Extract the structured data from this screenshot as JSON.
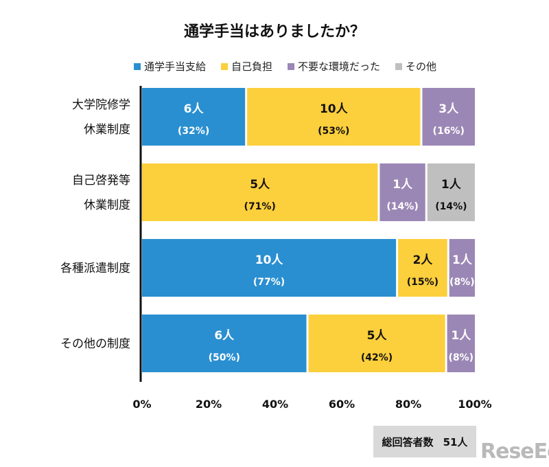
{
  "chart_data": {
    "type": "bar",
    "orientation": "horizontal",
    "stacked": "percent",
    "title": "通学手当はありましたか？",
    "categories": [
      [
        "大学院修学",
        "休業制度"
      ],
      [
        "自己啓発等",
        "休業制度"
      ],
      [
        "各種派遣制度"
      ],
      [
        "その他の制度"
      ]
    ],
    "series": [
      {
        "name": "通学手当支給",
        "color": "#2a8fd0",
        "label_color": "#ffffff",
        "values": [
          6,
          0,
          10,
          6
        ],
        "percent_labels": [
          "(32%)",
          null,
          "(77%)",
          "(50%)"
        ]
      },
      {
        "name": "自己負担",
        "color": "#fccf3c",
        "label_color": "#111111",
        "values": [
          10,
          5,
          2,
          5
        ],
        "percent_labels": [
          "(53%)",
          "(71%)",
          "(15%)",
          "(42%)"
        ]
      },
      {
        "name": "不要な環境だった",
        "color": "#9b87b5",
        "label_color": "#ffffff",
        "values": [
          3,
          1,
          1,
          1
        ],
        "percent_labels": [
          "(16%)",
          "(14%)",
          "(8%)",
          "(8%)"
        ]
      },
      {
        "name": "その他",
        "color": "#bfbfbf",
        "label_color": "#111111",
        "values": [
          0,
          1,
          0,
          0
        ],
        "percent_labels": [
          null,
          "(14%)",
          null,
          null
        ]
      }
    ],
    "unit": "人",
    "xlim": [
      0,
      100
    ],
    "xticks": [
      "0%",
      "20%",
      "40%",
      "60%",
      "80%",
      "100%"
    ],
    "grid": false,
    "legend_position": "top"
  },
  "total": {
    "label": "総回答者数",
    "value": "51人"
  },
  "logo": "ReseEd"
}
